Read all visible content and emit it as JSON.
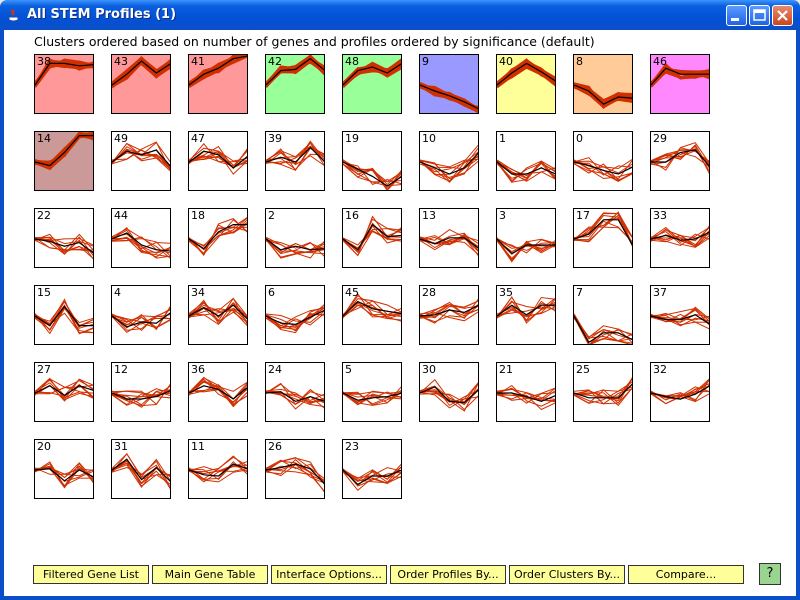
{
  "window": {
    "title": "All STEM Profiles (1)"
  },
  "header": "Clusters ordered based on number of genes and profiles ordered by significance (default)",
  "profiles": [
    {
      "id": "38",
      "color": "#ff9999",
      "filled": true,
      "v": [
        0,
        1.8,
        1.8,
        1.6,
        1.7
      ]
    },
    {
      "id": "43",
      "color": "#ff9999",
      "filled": true,
      "v": [
        0,
        0.9,
        2.0,
        1.0,
        1.8
      ]
    },
    {
      "id": "41",
      "color": "#ff9999",
      "filled": true,
      "v": [
        0,
        0.9,
        1.4,
        2.2,
        2.8
      ]
    },
    {
      "id": "42",
      "color": "#99ff99",
      "filled": true,
      "v": [
        0,
        1.2,
        1.3,
        2.2,
        1.2
      ]
    },
    {
      "id": "48",
      "color": "#99ff99",
      "filled": true,
      "v": [
        0,
        1.2,
        1.5,
        1.0,
        1.8
      ]
    },
    {
      "id": "9",
      "color": "#9999ff",
      "filled": true,
      "v": [
        0,
        -0.5,
        -0.9,
        -1.4,
        -2.0
      ]
    },
    {
      "id": "40",
      "color": "#ffff99",
      "filled": true,
      "v": [
        0,
        1.0,
        1.8,
        1.1,
        0.3
      ]
    },
    {
      "id": "8",
      "color": "#ffcc99",
      "filled": true,
      "v": [
        0,
        -0.5,
        -1.6,
        -1.0,
        -1.1
      ]
    },
    {
      "id": "46",
      "color": "#ff88ff",
      "filled": true,
      "v": [
        0,
        1.4,
        0.9,
        0.9,
        0.9
      ]
    },
    {
      "id": "14",
      "color": "#cc9999",
      "filled": true,
      "v": [
        0,
        -0.3,
        0.8,
        2.2,
        2.2
      ]
    },
    {
      "id": "49",
      "color": "#ffffff",
      "filled": false,
      "v": [
        0,
        0.9,
        0.6,
        1.0,
        -0.4
      ]
    },
    {
      "id": "47",
      "color": "#ffffff",
      "filled": false,
      "v": [
        0,
        0.9,
        0.6,
        -0.5,
        0.5
      ]
    },
    {
      "id": "39",
      "color": "#ffffff",
      "filled": false,
      "v": [
        0,
        0.4,
        0.0,
        1.2,
        0.0
      ]
    },
    {
      "id": "19",
      "color": "#ffffff",
      "filled": false,
      "v": [
        0,
        -0.6,
        -1.2,
        -2.0,
        -1.2
      ]
    },
    {
      "id": "10",
      "color": "#ffffff",
      "filled": false,
      "v": [
        0,
        -0.5,
        -1.0,
        -0.5,
        0.8
      ]
    },
    {
      "id": "1",
      "color": "#ffffff",
      "filled": false,
      "v": [
        0,
        -1.0,
        -1.0,
        -0.5,
        -1.0
      ]
    },
    {
      "id": "0",
      "color": "#ffffff",
      "filled": false,
      "v": [
        0,
        -0.3,
        -0.7,
        -1.0,
        -0.4
      ]
    },
    {
      "id": "29",
      "color": "#ffffff",
      "filled": false,
      "v": [
        0,
        0.0,
        0.8,
        1.0,
        -0.4
      ]
    },
    {
      "id": "22",
      "color": "#ffffff",
      "filled": false,
      "v": [
        0,
        -0.2,
        -0.6,
        -0.3,
        -1.2
      ]
    },
    {
      "id": "44",
      "color": "#ffffff",
      "filled": false,
      "v": [
        0,
        0.5,
        -0.5,
        -0.9,
        -1.0
      ]
    },
    {
      "id": "18",
      "color": "#ffffff",
      "filled": false,
      "v": [
        0,
        -0.8,
        0.6,
        1.2,
        1.2
      ]
    },
    {
      "id": "2",
      "color": "#ffffff",
      "filled": false,
      "v": [
        0,
        -0.9,
        -0.6,
        -0.9,
        -0.8
      ]
    },
    {
      "id": "16",
      "color": "#ffffff",
      "filled": false,
      "v": [
        0,
        -0.9,
        1.2,
        0.2,
        0.3
      ]
    },
    {
      "id": "13",
      "color": "#ffffff",
      "filled": false,
      "v": [
        0,
        -0.4,
        0.1,
        0.1,
        -0.8
      ]
    },
    {
      "id": "3",
      "color": "#ffffff",
      "filled": false,
      "v": [
        0,
        -1.2,
        -0.5,
        -0.5,
        -0.5
      ]
    },
    {
      "id": "17",
      "color": "#ffffff",
      "filled": false,
      "v": [
        0,
        0.4,
        1.6,
        1.6,
        -0.6
      ]
    },
    {
      "id": "33",
      "color": "#ffffff",
      "filled": false,
      "v": [
        0,
        0.3,
        -0.1,
        0.0,
        0.6
      ]
    },
    {
      "id": "15",
      "color": "#ffffff",
      "filled": false,
      "v": [
        0,
        -0.8,
        0.8,
        -0.8,
        -0.8
      ]
    },
    {
      "id": "4",
      "color": "#ffffff",
      "filled": false,
      "v": [
        0,
        -0.9,
        -0.5,
        -0.6,
        0.3
      ]
    },
    {
      "id": "34",
      "color": "#ffffff",
      "filled": false,
      "v": [
        0,
        0.7,
        0.0,
        0.9,
        -0.3
      ]
    },
    {
      "id": "6",
      "color": "#ffffff",
      "filled": false,
      "v": [
        0,
        -0.6,
        -0.7,
        -0.1,
        0.5
      ]
    },
    {
      "id": "45",
      "color": "#ffffff",
      "filled": false,
      "v": [
        0,
        1.2,
        0.6,
        0.4,
        0.2
      ]
    },
    {
      "id": "28",
      "color": "#ffffff",
      "filled": false,
      "v": [
        0,
        0.1,
        0.5,
        0.3,
        0.9
      ]
    },
    {
      "id": "35",
      "color": "#ffffff",
      "filled": false,
      "v": [
        0,
        0.9,
        0.1,
        0.9,
        0.9
      ]
    },
    {
      "id": "7",
      "color": "#ffffff",
      "filled": false,
      "v": [
        0,
        -2.2,
        -1.4,
        -1.4,
        -2.0
      ]
    },
    {
      "id": "37",
      "color": "#ffffff",
      "filled": false,
      "v": [
        0,
        -0.3,
        -0.3,
        0.1,
        -0.7
      ]
    },
    {
      "id": "27",
      "color": "#ffffff",
      "filled": false,
      "v": [
        0,
        0.6,
        -0.2,
        0.6,
        0.2
      ]
    },
    {
      "id": "12",
      "color": "#ffffff",
      "filled": false,
      "v": [
        0,
        -0.5,
        -0.5,
        -0.3,
        0.2
      ]
    },
    {
      "id": "36",
      "color": "#ffffff",
      "filled": false,
      "v": [
        0,
        0.6,
        0.3,
        -0.5,
        0.5
      ]
    },
    {
      "id": "24",
      "color": "#ffffff",
      "filled": false,
      "v": [
        0,
        0.1,
        -0.7,
        -0.3,
        -0.7
      ]
    },
    {
      "id": "5",
      "color": "#ffffff",
      "filled": false,
      "v": [
        0,
        -0.6,
        -0.4,
        -0.3,
        0.0
      ]
    },
    {
      "id": "30",
      "color": "#ffffff",
      "filled": false,
      "v": [
        0,
        0.5,
        -0.7,
        -0.8,
        0.3
      ]
    },
    {
      "id": "21",
      "color": "#ffffff",
      "filled": false,
      "v": [
        0,
        0.0,
        -0.3,
        -0.7,
        -0.2
      ]
    },
    {
      "id": "25",
      "color": "#ffffff",
      "filled": false,
      "v": [
        0,
        -0.4,
        -0.4,
        -0.4,
        0.8
      ]
    },
    {
      "id": "32",
      "color": "#ffffff",
      "filled": false,
      "v": [
        0,
        -0.3,
        -0.5,
        -0.1,
        0.6
      ]
    },
    {
      "id": "20",
      "color": "#ffffff",
      "filled": false,
      "v": [
        0,
        0.1,
        -0.9,
        0.0,
        -0.6
      ]
    },
    {
      "id": "31",
      "color": "#ffffff",
      "filled": false,
      "v": [
        0,
        0.9,
        -0.8,
        0.2,
        -1.0
      ]
    },
    {
      "id": "11",
      "color": "#ffffff",
      "filled": false,
      "v": [
        0,
        -0.4,
        -0.5,
        0.5,
        0.1
      ]
    },
    {
      "id": "26",
      "color": "#ffffff",
      "filled": false,
      "v": [
        0,
        0.2,
        0.5,
        0.1,
        -1.2
      ]
    },
    {
      "id": "23",
      "color": "#ffffff",
      "filled": false,
      "v": [
        0,
        -1.2,
        -0.5,
        -0.5,
        0.0
      ]
    }
  ],
  "buttons": [
    {
      "label": "Filtered Gene List"
    },
    {
      "label": "Main Gene Table"
    },
    {
      "label": "Interface Options..."
    },
    {
      "label": "Order Profiles By..."
    },
    {
      "label": "Order Clusters By..."
    },
    {
      "label": "Compare..."
    }
  ],
  "help": "?",
  "colors": {
    "line": "#d03000",
    "model": "#000000"
  }
}
